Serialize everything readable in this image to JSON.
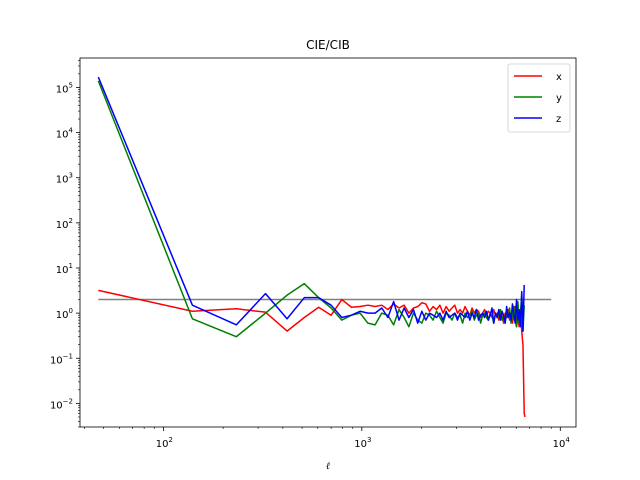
{
  "chart_data": {
    "type": "line",
    "title": "CIE/CIB",
    "xlabel": "ℓ",
    "ylabel": "",
    "xscale": "log",
    "yscale": "log",
    "xlim": [
      38,
      12000
    ],
    "ylim": [
      0.003,
      450000
    ],
    "xticks": [
      {
        "base": "10",
        "exp": "2",
        "value": 100
      },
      {
        "base": "10",
        "exp": "3",
        "value": 1000
      },
      {
        "base": "10",
        "exp": "4",
        "value": 10000
      }
    ],
    "yticks": [
      {
        "base": "10",
        "exp": "−2",
        "value": 0.01
      },
      {
        "base": "10",
        "exp": "−1",
        "value": 0.1
      },
      {
        "base": "10",
        "exp": "0",
        "value": 1
      },
      {
        "base": "10",
        "exp": "1",
        "value": 10
      },
      {
        "base": "10",
        "exp": "2",
        "value": 100
      },
      {
        "base": "10",
        "exp": "3",
        "value": 1000
      },
      {
        "base": "10",
        "exp": "4",
        "value": 10000
      },
      {
        "base": "10",
        "exp": "5",
        "value": 100000
      }
    ],
    "legend_position": "top-right",
    "reference_line": {
      "y": 2.0,
      "x_range": [
        47,
        9000
      ],
      "color": "#808080"
    },
    "series": [
      {
        "name": "x",
        "color": "#ff0000",
        "x": [
          47,
          140,
          233,
          327,
          420,
          513,
          606,
          700,
          793,
          886,
          980,
          1073,
          1166,
          1260,
          1353,
          1446,
          1540,
          1633,
          1726,
          1820,
          1913,
          2006,
          2100,
          2193,
          2286,
          2380,
          2473,
          2566,
          2660,
          2753,
          2846,
          2940,
          3033,
          3126,
          3220,
          3313,
          3406,
          3500,
          3593,
          3686,
          3780,
          3873,
          3966,
          4060,
          4153,
          4246,
          4340,
          4433,
          4526,
          4620,
          4713,
          4806,
          4900,
          4993,
          5086,
          5180,
          5273,
          5366,
          5460,
          5553,
          5646,
          5740,
          5833,
          5926,
          6020,
          6113,
          6206,
          6300,
          6393,
          6486,
          6580,
          6640
        ],
        "y": [
          3.2,
          1.1,
          1.25,
          1.05,
          0.4,
          0.8,
          1.35,
          0.9,
          2.0,
          1.35,
          1.4,
          1.5,
          1.4,
          1.5,
          1.2,
          1.6,
          1.3,
          1.5,
          1.0,
          1.3,
          1.4,
          1.7,
          1.6,
          1.1,
          1.4,
          1.2,
          1.5,
          1.0,
          1.4,
          1.1,
          1.3,
          1.5,
          1.0,
          1.2,
          1.0,
          1.4,
          1.1,
          0.9,
          1.3,
          1.0,
          1.2,
          1.1,
          0.8,
          1.0,
          1.2,
          0.9,
          1.1,
          1.0,
          0.8,
          1.2,
          0.9,
          1.0,
          0.7,
          1.1,
          0.9,
          0.6,
          1.0,
          0.8,
          1.2,
          0.7,
          1.0,
          0.6,
          0.9,
          1.4,
          0.5,
          0.8,
          0.5,
          1.2,
          0.4,
          0.2,
          0.006,
          0.005
        ]
      },
      {
        "name": "y",
        "color": "#008000",
        "x": [
          47,
          140,
          233,
          327,
          420,
          513,
          606,
          700,
          793,
          886,
          980,
          1073,
          1166,
          1260,
          1353,
          1446,
          1540,
          1633,
          1726,
          1820,
          1913,
          2006,
          2100,
          2193,
          2286,
          2380,
          2473,
          2566,
          2660,
          2753,
          2846,
          2940,
          3033,
          3126,
          3220,
          3313,
          3406,
          3500,
          3593,
          3686,
          3780,
          3873,
          3966,
          4060,
          4153,
          4246,
          4340,
          4433,
          4526,
          4620,
          4713,
          4806,
          4900,
          4993,
          5086,
          5180,
          5273,
          5366,
          5460,
          5553,
          5646,
          5740,
          5833,
          5926,
          6020,
          6113,
          6206,
          6300,
          6393,
          6486,
          6580
        ],
        "y": [
          140000,
          0.75,
          0.3,
          1.0,
          2.5,
          4.5,
          2.2,
          1.3,
          0.7,
          0.9,
          1.0,
          0.6,
          0.55,
          1.0,
          0.9,
          0.55,
          1.2,
          0.8,
          0.5,
          1.0,
          0.7,
          0.6,
          1.0,
          0.9,
          0.7,
          1.1,
          0.8,
          0.6,
          1.0,
          0.9,
          0.7,
          1.0,
          0.8,
          0.9,
          0.6,
          1.0,
          0.8,
          0.9,
          1.1,
          0.7,
          0.9,
          1.0,
          0.6,
          0.9,
          1.0,
          0.8,
          0.7,
          1.0,
          0.9,
          0.6,
          1.0,
          0.8,
          0.9,
          1.2,
          0.7,
          0.9,
          0.6,
          1.0,
          0.8,
          1.3,
          0.6,
          0.9,
          1.4,
          0.7,
          0.5,
          1.8,
          0.6,
          1.0,
          2.5,
          0.4,
          1.5
        ]
      },
      {
        "name": "z",
        "color": "#0000ff",
        "x": [
          47,
          140,
          233,
          327,
          420,
          513,
          606,
          700,
          793,
          886,
          980,
          1073,
          1166,
          1260,
          1353,
          1446,
          1540,
          1633,
          1726,
          1820,
          1913,
          2006,
          2100,
          2193,
          2286,
          2380,
          2473,
          2566,
          2660,
          2753,
          2846,
          2940,
          3033,
          3126,
          3220,
          3313,
          3406,
          3500,
          3593,
          3686,
          3780,
          3873,
          3966,
          4060,
          4153,
          4246,
          4340,
          4433,
          4526,
          4620,
          4713,
          4806,
          4900,
          4993,
          5086,
          5180,
          5273,
          5366,
          5460,
          5553,
          5646,
          5740,
          5833,
          5926,
          6020,
          6113,
          6206,
          6300,
          6393,
          6486,
          6580
        ],
        "y": [
          170000,
          1.5,
          0.55,
          2.7,
          0.75,
          2.2,
          2.2,
          1.5,
          0.8,
          0.9,
          1.1,
          1.0,
          1.0,
          1.3,
          0.8,
          1.8,
          0.7,
          1.3,
          0.8,
          1.2,
          0.6,
          1.1,
          0.7,
          1.0,
          0.9,
          0.8,
          1.0,
          0.7,
          1.1,
          0.8,
          0.9,
          1.0,
          0.7,
          1.0,
          0.9,
          0.8,
          1.1,
          0.7,
          1.0,
          0.8,
          1.2,
          0.7,
          0.9,
          1.0,
          0.8,
          1.1,
          0.7,
          0.9,
          1.3,
          0.6,
          1.0,
          0.8,
          1.2,
          0.7,
          1.1,
          0.9,
          0.6,
          1.4,
          0.8,
          1.0,
          0.7,
          1.6,
          0.9,
          0.6,
          2.0,
          0.7,
          1.2,
          0.5,
          3.0,
          0.4,
          4.2
        ]
      }
    ]
  }
}
